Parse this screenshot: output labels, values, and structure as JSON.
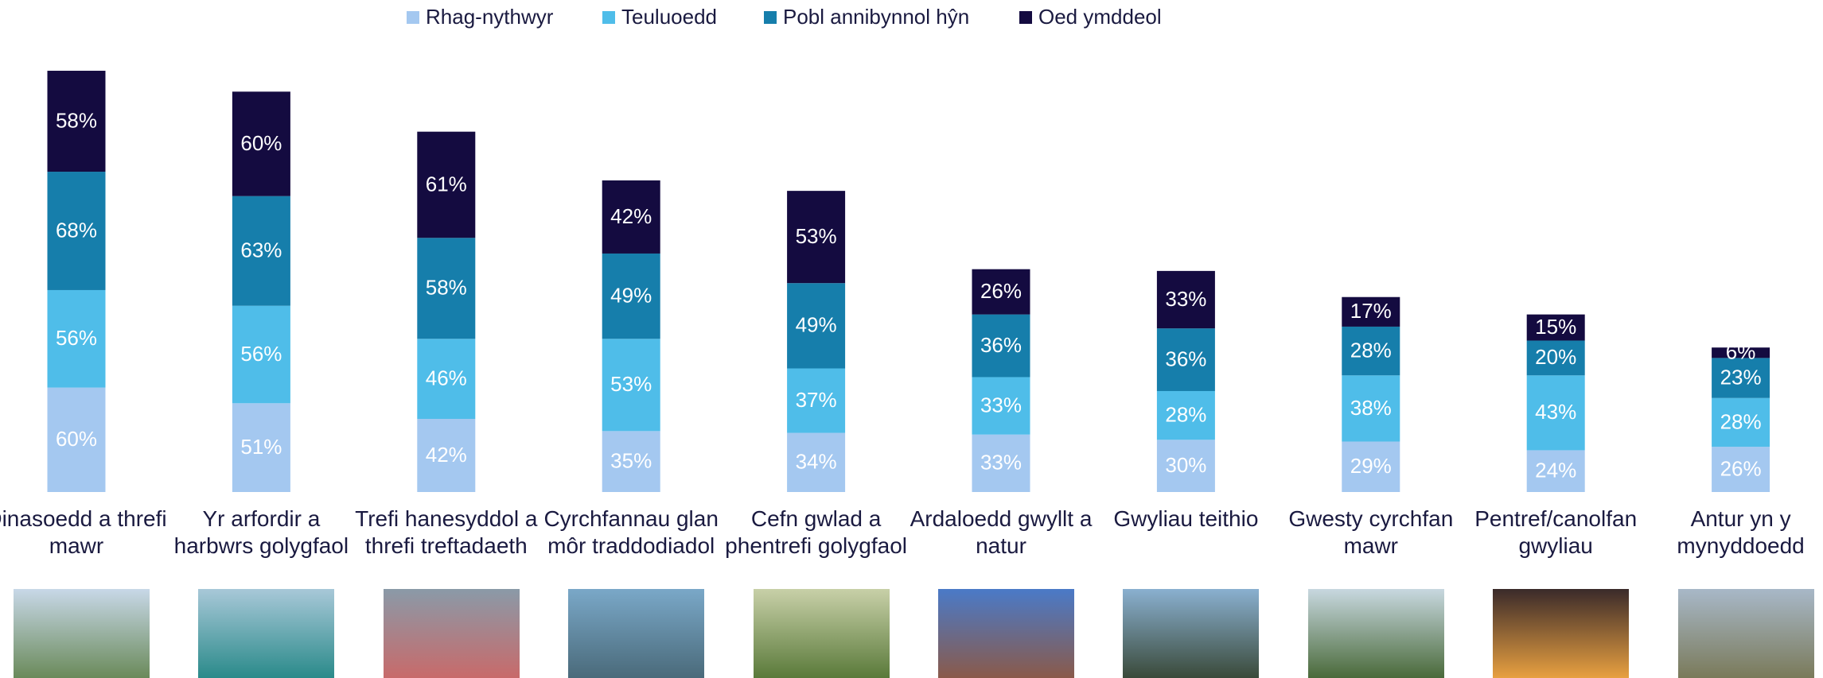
{
  "chart_data": {
    "type": "stacked_bar",
    "legend": "top",
    "categories": [
      "Dinasoedd a threfi mawr",
      "Yr arfordir a harbwrs golygfaol",
      "Trefi hanesyddol a threfi treftadaeth",
      "Cyrchfannau glan môr traddodiadol",
      "Cefn gwlad a phentrefi golygfaol",
      "Ardaloedd gwyllt a natur",
      "Gwyliau teithio",
      "Gwesty cyrchfan mawr",
      "Pentref/canolfan gwyliau",
      "Antur yn y mynyddoedd"
    ],
    "series": [
      {
        "name": "Rhag-nythwyr",
        "color": "#a4c8f0",
        "values": [
          60,
          51,
          42,
          35,
          34,
          33,
          30,
          29,
          24,
          26
        ],
        "value_labels": [
          "60%",
          "51%",
          "42%",
          "35%",
          "34%",
          "33%",
          "30%",
          "29%",
          "24%",
          "26%"
        ]
      },
      {
        "name": "Teuluoedd",
        "color": "#4fbde9",
        "values": [
          56,
          56,
          46,
          53,
          37,
          33,
          28,
          38,
          43,
          28
        ],
        "value_labels": [
          "56%",
          "56%",
          "46%",
          "53%",
          "37%",
          "33%",
          "28%",
          "38%",
          "43%",
          "28%"
        ]
      },
      {
        "name": "Pobl annibynnol hŷn",
        "color": "#167eab",
        "values": [
          68,
          63,
          58,
          49,
          49,
          36,
          36,
          28,
          20,
          23
        ],
        "value_labels": [
          "68%",
          "63%",
          "58%",
          "49%",
          "49%",
          "36%",
          "36%",
          "28%",
          "20%",
          "23%"
        ]
      },
      {
        "name": "Oed ymddeol",
        "color": "#140b40",
        "values": [
          58,
          60,
          61,
          42,
          53,
          26,
          33,
          17,
          15,
          6
        ],
        "value_labels": [
          "58%",
          "60%",
          "61%",
          "42%",
          "53%",
          "26%",
          "33%",
          "17%",
          "15%",
          "6%"
        ]
      }
    ]
  }
}
